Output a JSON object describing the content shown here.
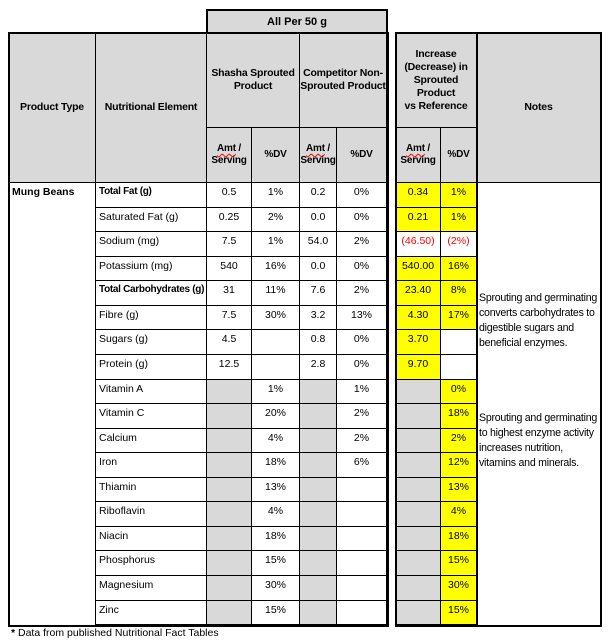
{
  "banner": "All Per 50 g",
  "header": {
    "product_type": "Product Type",
    "nutritional_element": "Nutritional Element",
    "shasha_group": "Shasha Sprouted\nProduct",
    "competitor_group": "Competitor Non-\nSprouted Product",
    "increase_group": "Increase\n(Decrease) in\nSprouted Product\nvs Reference",
    "notes": "Notes",
    "amt": "Amt",
    "amt_slash": " /",
    "serving": "Serving",
    "dv": "%DV"
  },
  "product_type_value": "Mung Beans",
  "rows": [
    {
      "element": "Total Fat (g)",
      "bold": true,
      "cells": {
        "s_amt": {
          "v": "0.5",
          "bg": "w"
        },
        "s_dv": {
          "v": "1%",
          "bg": "w"
        },
        "c_amt": {
          "v": "0.2",
          "bg": "w"
        },
        "c_dv": {
          "v": "0%",
          "bg": "w"
        },
        "i_amt": {
          "v": "0.34",
          "bg": "y"
        },
        "i_dv": {
          "v": "1%",
          "bg": "y"
        }
      }
    },
    {
      "element": "Saturated Fat (g)",
      "bold": false,
      "cells": {
        "s_amt": {
          "v": "0.25",
          "bg": "w"
        },
        "s_dv": {
          "v": "2%",
          "bg": "w"
        },
        "c_amt": {
          "v": "0.0",
          "bg": "w"
        },
        "c_dv": {
          "v": "0%",
          "bg": "w"
        },
        "i_amt": {
          "v": "0.21",
          "bg": "y"
        },
        "i_dv": {
          "v": "1%",
          "bg": "y"
        }
      }
    },
    {
      "element": "Sodium (mg)",
      "bold": false,
      "cells": {
        "s_amt": {
          "v": "7.5",
          "bg": "w"
        },
        "s_dv": {
          "v": "1%",
          "bg": "w"
        },
        "c_amt": {
          "v": "54.0",
          "bg": "w"
        },
        "c_dv": {
          "v": "2%",
          "bg": "w"
        },
        "i_amt": {
          "v": "(46.50)",
          "bg": "w",
          "neg": true
        },
        "i_dv": {
          "v": "(2%)",
          "bg": "w",
          "neg": true
        }
      }
    },
    {
      "element": "Potassium (mg)",
      "bold": false,
      "cells": {
        "s_amt": {
          "v": "540",
          "bg": "w"
        },
        "s_dv": {
          "v": "16%",
          "bg": "w"
        },
        "c_amt": {
          "v": "0.0",
          "bg": "w"
        },
        "c_dv": {
          "v": "0%",
          "bg": "w"
        },
        "i_amt": {
          "v": "540.00",
          "bg": "y"
        },
        "i_dv": {
          "v": "16%",
          "bg": "y"
        }
      }
    },
    {
      "element": "Total Carbohydrates (g)",
      "bold": true,
      "cells": {
        "s_amt": {
          "v": "31",
          "bg": "w"
        },
        "s_dv": {
          "v": "11%",
          "bg": "w"
        },
        "c_amt": {
          "v": "7.6",
          "bg": "w"
        },
        "c_dv": {
          "v": "2%",
          "bg": "w"
        },
        "i_amt": {
          "v": "23.40",
          "bg": "y"
        },
        "i_dv": {
          "v": "8%",
          "bg": "y"
        }
      }
    },
    {
      "element": "Fibre (g)",
      "bold": false,
      "cells": {
        "s_amt": {
          "v": "7.5",
          "bg": "w"
        },
        "s_dv": {
          "v": "30%",
          "bg": "w"
        },
        "c_amt": {
          "v": "3.2",
          "bg": "w"
        },
        "c_dv": {
          "v": "13%",
          "bg": "w"
        },
        "i_amt": {
          "v": "4.30",
          "bg": "y"
        },
        "i_dv": {
          "v": "17%",
          "bg": "y"
        }
      }
    },
    {
      "element": "Sugars (g)",
      "bold": false,
      "cells": {
        "s_amt": {
          "v": "4.5",
          "bg": "w"
        },
        "s_dv": {
          "v": "",
          "bg": "w"
        },
        "c_amt": {
          "v": "0.8",
          "bg": "w"
        },
        "c_dv": {
          "v": "0%",
          "bg": "w"
        },
        "i_amt": {
          "v": "3.70",
          "bg": "y"
        },
        "i_dv": {
          "v": "",
          "bg": "w"
        }
      }
    },
    {
      "element": "Protein (g)",
      "bold": false,
      "cells": {
        "s_amt": {
          "v": "12.5",
          "bg": "w"
        },
        "s_dv": {
          "v": "",
          "bg": "w"
        },
        "c_amt": {
          "v": "2.8",
          "bg": "w"
        },
        "c_dv": {
          "v": "0%",
          "bg": "w"
        },
        "i_amt": {
          "v": "9.70",
          "bg": "y"
        },
        "i_dv": {
          "v": "",
          "bg": "w"
        }
      }
    },
    {
      "element": "Vitamin A",
      "bold": false,
      "cells": {
        "s_amt": {
          "v": "",
          "bg": "g"
        },
        "s_dv": {
          "v": "1%",
          "bg": "w"
        },
        "c_amt": {
          "v": "",
          "bg": "g"
        },
        "c_dv": {
          "v": "1%",
          "bg": "w"
        },
        "i_amt": {
          "v": "",
          "bg": "g"
        },
        "i_dv": {
          "v": "0%",
          "bg": "y"
        }
      }
    },
    {
      "element": "Vitamin C",
      "bold": false,
      "cells": {
        "s_amt": {
          "v": "",
          "bg": "g"
        },
        "s_dv": {
          "v": "20%",
          "bg": "w"
        },
        "c_amt": {
          "v": "",
          "bg": "g"
        },
        "c_dv": {
          "v": "2%",
          "bg": "w"
        },
        "i_amt": {
          "v": "",
          "bg": "g"
        },
        "i_dv": {
          "v": "18%",
          "bg": "y"
        }
      }
    },
    {
      "element": "Calcium",
      "bold": false,
      "cells": {
        "s_amt": {
          "v": "",
          "bg": "g"
        },
        "s_dv": {
          "v": "4%",
          "bg": "w"
        },
        "c_amt": {
          "v": "",
          "bg": "g"
        },
        "c_dv": {
          "v": "2%",
          "bg": "w"
        },
        "i_amt": {
          "v": "",
          "bg": "g"
        },
        "i_dv": {
          "v": "2%",
          "bg": "y"
        }
      }
    },
    {
      "element": "Iron",
      "bold": false,
      "cells": {
        "s_amt": {
          "v": "",
          "bg": "g"
        },
        "s_dv": {
          "v": "18%",
          "bg": "w"
        },
        "c_amt": {
          "v": "",
          "bg": "g"
        },
        "c_dv": {
          "v": "6%",
          "bg": "w"
        },
        "i_amt": {
          "v": "",
          "bg": "g"
        },
        "i_dv": {
          "v": "12%",
          "bg": "y"
        }
      }
    },
    {
      "element": "Thiamin",
      "bold": false,
      "cells": {
        "s_amt": {
          "v": "",
          "bg": "g"
        },
        "s_dv": {
          "v": "13%",
          "bg": "w"
        },
        "c_amt": {
          "v": "",
          "bg": "g"
        },
        "c_dv": {
          "v": "",
          "bg": "w"
        },
        "i_amt": {
          "v": "",
          "bg": "g"
        },
        "i_dv": {
          "v": "13%",
          "bg": "y"
        }
      }
    },
    {
      "element": "Riboflavin",
      "bold": false,
      "cells": {
        "s_amt": {
          "v": "",
          "bg": "g"
        },
        "s_dv": {
          "v": "4%",
          "bg": "w"
        },
        "c_amt": {
          "v": "",
          "bg": "g"
        },
        "c_dv": {
          "v": "",
          "bg": "w"
        },
        "i_amt": {
          "v": "",
          "bg": "g"
        },
        "i_dv": {
          "v": "4%",
          "bg": "y"
        }
      }
    },
    {
      "element": "Niacin",
      "bold": false,
      "cells": {
        "s_amt": {
          "v": "",
          "bg": "g"
        },
        "s_dv": {
          "v": "18%",
          "bg": "w"
        },
        "c_amt": {
          "v": "",
          "bg": "g"
        },
        "c_dv": {
          "v": "",
          "bg": "w"
        },
        "i_amt": {
          "v": "",
          "bg": "g"
        },
        "i_dv": {
          "v": "18%",
          "bg": "y"
        }
      }
    },
    {
      "element": "Phosphorus",
      "bold": false,
      "cells": {
        "s_amt": {
          "v": "",
          "bg": "g"
        },
        "s_dv": {
          "v": "15%",
          "bg": "w"
        },
        "c_amt": {
          "v": "",
          "bg": "g"
        },
        "c_dv": {
          "v": "",
          "bg": "w"
        },
        "i_amt": {
          "v": "",
          "bg": "g"
        },
        "i_dv": {
          "v": "15%",
          "bg": "y"
        }
      }
    },
    {
      "element": "Magnesium",
      "bold": false,
      "cells": {
        "s_amt": {
          "v": "",
          "bg": "g"
        },
        "s_dv": {
          "v": "30%",
          "bg": "w"
        },
        "c_amt": {
          "v": "",
          "bg": "g"
        },
        "c_dv": {
          "v": "",
          "bg": "w"
        },
        "i_amt": {
          "v": "",
          "bg": "g"
        },
        "i_dv": {
          "v": "30%",
          "bg": "y"
        }
      }
    },
    {
      "element": "Zinc",
      "bold": false,
      "cells": {
        "s_amt": {
          "v": "",
          "bg": "g"
        },
        "s_dv": {
          "v": "15%",
          "bg": "w"
        },
        "c_amt": {
          "v": "",
          "bg": "g"
        },
        "c_dv": {
          "v": "",
          "bg": "w"
        },
        "i_amt": {
          "v": "",
          "bg": "g"
        },
        "i_dv": {
          "v": "15%",
          "bg": "y"
        }
      }
    }
  ],
  "notes": {
    "note1": "Sprouting and germinating\nconverts carbohydrates to\ndigestible sugars and\nbeneficial enzymes.",
    "note2": "Sprouting and germinating\nto highest enzyme activity\nincreases nutrition,\nvitamins and minerals."
  },
  "footer": {
    "star": "*",
    "text": " Data from published Nutritional Fact Tables"
  },
  "colors": {
    "header_fill": "#d9d9d9",
    "empty_cell_fill": "#d9d9d9",
    "highlight": "#ffff00",
    "negative_text": "#ff0000",
    "border": "#000000"
  }
}
